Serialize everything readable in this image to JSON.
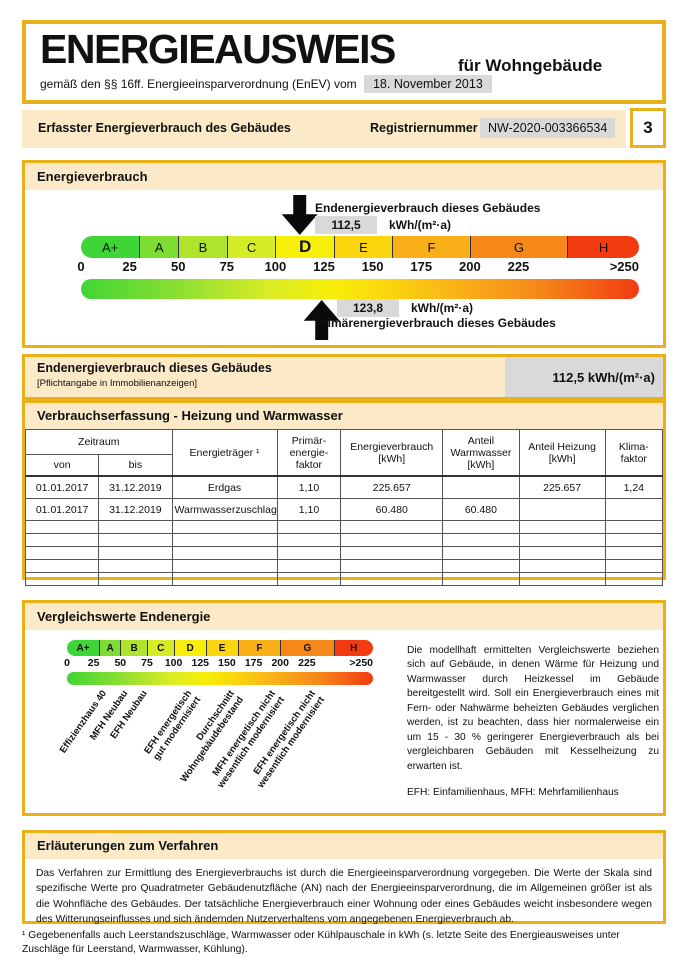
{
  "header": {
    "title": "ENERGIEAUSWEIS",
    "subtitle": "für Wohngebäude",
    "law_text": "gemäß den §§ 16ff. Energieeinsparverordnung (EnEV) vom",
    "law_date": "18. November 2013",
    "band_title": "Erfasster Energieverbrauch des Gebäudes",
    "registration_label": "Registriernummer",
    "registration_value": "NW-2020-003366534",
    "page_number": "3"
  },
  "colors": {
    "gold_border": "#e9b117",
    "cream_band": "#fbe9c8",
    "value_chip_gray": "#d9d9d9"
  },
  "chart_data": {
    "type": "bar",
    "title": "Energieverbrauch",
    "scale_unit": "kWh/(m²·a)",
    "axis_range": [
      0,
      250
    ],
    "segments": [
      {
        "label": "A+",
        "from": 0,
        "to": 30,
        "color": "#3fd537"
      },
      {
        "label": "A",
        "from": 30,
        "to": 50,
        "color": "#7edc33"
      },
      {
        "label": "B",
        "from": 50,
        "to": 75,
        "color": "#aee42c"
      },
      {
        "label": "C",
        "from": 75,
        "to": 100,
        "color": "#d6ec27"
      },
      {
        "label": "D",
        "from": 100,
        "to": 130,
        "color": "#f7ee09",
        "emph": true
      },
      {
        "label": "E",
        "from": 130,
        "to": 160,
        "color": "#fbd60e"
      },
      {
        "label": "F",
        "from": 160,
        "to": 200,
        "color": "#f9b018"
      },
      {
        "label": "G",
        "from": 200,
        "to": 250,
        "color": "#f6881a"
      },
      {
        "label": "H",
        "from": 250,
        "to": 287,
        "color": "#f23b11"
      }
    ],
    "ticks": [
      {
        "v": 0,
        "t": "0"
      },
      {
        "v": 25,
        "t": "25"
      },
      {
        "v": 50,
        "t": "50"
      },
      {
        "v": 75,
        "t": "75"
      },
      {
        "v": 100,
        "t": "100"
      },
      {
        "v": 125,
        "t": "125"
      },
      {
        "v": 150,
        "t": "150"
      },
      {
        "v": 175,
        "t": "175"
      },
      {
        "v": 200,
        "t": "200"
      },
      {
        "v": 225,
        "t": "225"
      },
      {
        "v": 287,
        "t": ">250",
        "end": true
      }
    ],
    "final_energy": {
      "label": "Endenergieverbrauch dieses Gebäudes",
      "value": "112,5",
      "unit": "kWh/(m²·a)",
      "position": 112.5
    },
    "primary_energy": {
      "label": "Primärenergieverbrauch dieses Gebäudes",
      "value": "123,8",
      "unit": "kWh/(m²·a)",
      "position": 123.8
    }
  },
  "energy_section_title": "Energieverbrauch",
  "endenergie": {
    "title": "Endenergieverbrauch dieses Gebäudes",
    "subtitle": "[Pflichtangabe in Immobilienanzeigen]",
    "value": "112,5 kWh/(m²·a)"
  },
  "consumption_table": {
    "section_title": "Verbrauchserfassung - Heizung und Warmwasser",
    "headers": {
      "zeitraum": "Zeitraum",
      "von": "von",
      "bis": "bis",
      "energietraeger": "Energieträger ¹",
      "pef": "Primär-\nenergie-\nfaktor",
      "verbrauch": "Energieverbrauch\n[kWh]",
      "warmwasser": "Anteil\nWarmwasser\n[kWh]",
      "heizung": "Anteil Heizung\n[kWh]",
      "klima": "Klima-\nfaktor"
    },
    "rows": [
      [
        "01.01.2017",
        "31.12.2019",
        "Erdgas",
        "1,10",
        "225.657",
        "",
        "225.657",
        "1,24"
      ],
      [
        "01.01.2017",
        "31.12.2019",
        "Warmwasserzuschlag",
        "1,10",
        "60.480",
        "60.480",
        "",
        ""
      ]
    ],
    "empty_row_count": 5
  },
  "comparison": {
    "section_title": "Vergleichswerte Endenergie",
    "markers": [
      {
        "label": "Effizienzhaus 40",
        "pos": 32
      },
      {
        "label": "MFH Neubau",
        "pos": 52
      },
      {
        "label": "EFH Neubau",
        "pos": 70
      },
      {
        "label": "EFH energetisch\ngut modernisiert",
        "pos": 112
      },
      {
        "label": "Durchschnitt\nWohngebäudebestand",
        "pos": 152
      },
      {
        "label": "MFH energetisch nicht\nwesentlich modernisiert",
        "pos": 190
      },
      {
        "label": "EFH energetisch nicht\nwesentlich modernisiert",
        "pos": 228
      }
    ],
    "paragraph": "Die modellhaft ermittelten Vergleichswerte beziehen sich auf Gebäude, in denen Wärme für Heizung und Warmwasser durch Heizkessel im Gebäude bereitgestellt wird. Soll ein Energieverbrauch eines mit Fern- oder Nahwärme beheizten Gebäudes verglichen werden, ist zu beachten, dass hier normalerweise ein um 15 - 30 % geringerer Energieverbrauch als bei vergleichbaren Gebäuden mit Kesselheizung zu erwarten ist.",
    "abbrev": "EFH: Einfamilienhaus, MFH: Mehrfamilienhaus"
  },
  "explanation": {
    "section_title": "Erläuterungen zum Verfahren",
    "text": "Das Verfahren zur Ermittlung des Energieverbrauchs ist durch die Energieeinsparverordnung vorgegeben. Die Werte der Skala sind spezifische Werte pro Quadratmeter Gebäudenutzfläche (AN) nach der Energieeinsparverordnung, die im Allgemeinen größer ist als die Wohnfläche des Gebäudes. Der tatsächliche Energieverbrauch einer Wohnung oder eines Gebäudes weicht insbesondere wegen des Witterungseinflusses und sich ändernden Nutzerverhaltens vom angegebenen Energieverbrauch ab."
  },
  "footnote": "¹ Gegebenenfalls auch Leerstandszuschläge, Warmwasser oder Kühlpauschale in kWh (s. letzte Seite des Energieausweises unter Zuschläge für Leerstand, Warmwasser, Kühlung)."
}
